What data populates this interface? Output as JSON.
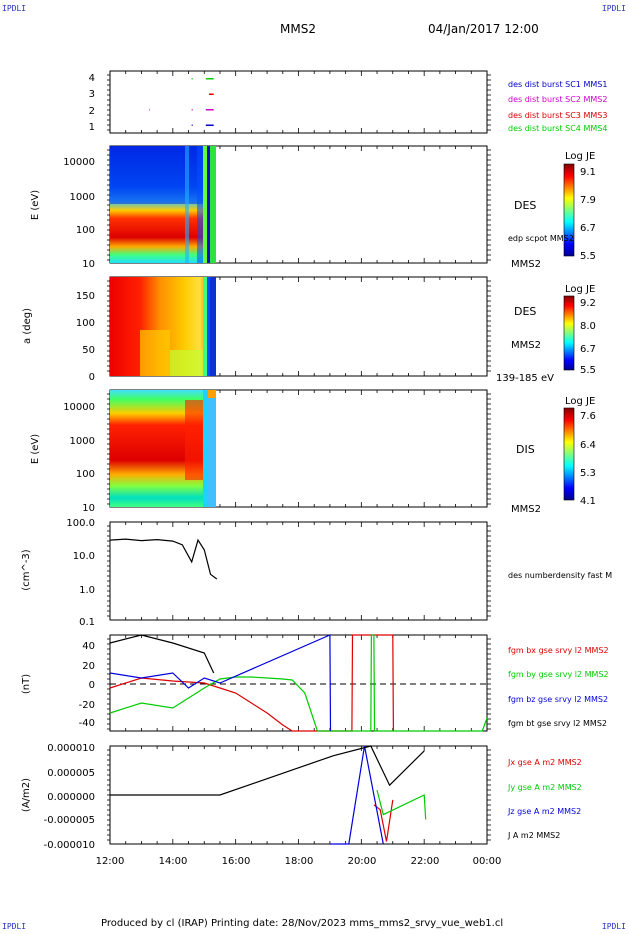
{
  "corner_tags": {
    "tl": "IPDLI",
    "tr": "IPDLI",
    "bl": "IPDLI",
    "br": "IPDLI"
  },
  "header": {
    "title": "MMS2",
    "datetime": "04/Jan/2017 12:00"
  },
  "footer": {
    "text": "Produced by cl (IRAP)   Printing date: 28/Nov/2023   mms_mms2_srvy_vue_web1.cl"
  },
  "colors": {
    "mms1": "#0000cc",
    "mms2": "#cc00cc",
    "mms3": "#dd0000",
    "mms4": "#00cc00",
    "bx": "#dd0000",
    "by": "#00cc00",
    "bz": "#0000dd",
    "bt": "#000000"
  },
  "chart_data": [
    {
      "type": "scatter",
      "id": "burst",
      "ylim": [
        0.5,
        4.5
      ],
      "yticks": [
        "1",
        "2",
        "3",
        "4"
      ],
      "legend_placement": "right",
      "legend": [
        "des dist burst SC1 MMS1",
        "des dist burst SC2 MMS2",
        "des dist burst SC3 MMS3",
        "des dist burst SC4 MMS4"
      ],
      "series": [
        {
          "name": "des dist burst SC1 MMS1",
          "y": 1,
          "segments": [
            [
              14.6,
              14.63
            ],
            [
              15.05,
              15.3
            ]
          ]
        },
        {
          "name": "des dist burst SC2 MMS2",
          "y": 2,
          "segments": [
            [
              13.25,
              13.27
            ],
            [
              14.6,
              14.63
            ],
            [
              15.05,
              15.3
            ]
          ]
        },
        {
          "name": "des dist burst SC3 MMS3",
          "y": 3,
          "segments": [
            [
              15.15,
              15.3
            ]
          ]
        },
        {
          "name": "des dist burst SC4 MMS4",
          "y": 4,
          "segments": [
            [
              14.6,
              14.63
            ],
            [
              15.05,
              15.3
            ]
          ]
        }
      ]
    },
    {
      "type": "heatmap",
      "id": "des_energy",
      "ylabel": "E (eV)",
      "yscale": "log",
      "ylim": [
        10,
        30000
      ],
      "yticks": [
        "10",
        "100",
        "1000",
        "10000"
      ],
      "right_labels": [
        "DES",
        "edp scpot MMS2",
        "MMS2"
      ],
      "colorbar": {
        "title": "Log JE",
        "ticks": [
          "9.1",
          "7.9",
          "6.7",
          "5.5"
        ]
      }
    },
    {
      "type": "heatmap",
      "id": "des_pitch",
      "ylabel": "a (deg)",
      "ylim": [
        0,
        180
      ],
      "yticks": [
        "0",
        "50",
        "100",
        "150"
      ],
      "right_labels": [
        "DES",
        "MMS2",
        "139-185 eV"
      ],
      "colorbar": {
        "title": "Log JE",
        "ticks": [
          "9.2",
          "8.0",
          "6.7",
          "5.5"
        ]
      }
    },
    {
      "type": "heatmap",
      "id": "dis_energy",
      "ylabel": "E (eV)",
      "yscale": "log",
      "ylim": [
        10,
        30000
      ],
      "yticks": [
        "10",
        "100",
        "1000",
        "10000"
      ],
      "right_labels": [
        "DIS",
        "MMS2"
      ],
      "colorbar": {
        "title": "Log JE",
        "ticks": [
          "7.6",
          "6.4",
          "5.3",
          "4.1"
        ]
      }
    },
    {
      "type": "line",
      "id": "density",
      "ylabel": "(cm^-3)",
      "yscale": "log",
      "ylim": [
        0.1,
        100
      ],
      "yticks": [
        "0.1",
        "1.0",
        "10.0",
        "100.0"
      ],
      "legend": [
        "des numberdensity fast M"
      ],
      "x": [
        12.0,
        12.5,
        13.0,
        13.5,
        14.0,
        14.3,
        14.6,
        14.8,
        15.0,
        15.2,
        15.4
      ],
      "values": [
        28,
        30,
        27,
        29,
        26,
        20,
        6,
        28,
        14,
        2.5,
        1.8
      ]
    },
    {
      "type": "line",
      "id": "bfield",
      "ylabel": "(nT)",
      "ylim": [
        -48,
        48
      ],
      "yticks": [
        "-40",
        "-20",
        "0",
        "20",
        "40"
      ],
      "legend": [
        "fgm bx gse srvy l2 MMS2",
        "fgm by gse srvy l2 MMS2",
        "fgm bz gse srvy l2 MMS2",
        "fgm bt gse srvy l2 MMS2"
      ],
      "series": [
        {
          "name": "fgm bx gse srvy l2 MMS2",
          "x": [
            12.0,
            13.0,
            14.0,
            15.0,
            15.5,
            16.0,
            16.5,
            17.0,
            17.5,
            17.8,
            19.7,
            19.72,
            21.0,
            21.02
          ],
          "values": [
            -5,
            5,
            2,
            0,
            -5,
            -10,
            -20,
            -30,
            -42,
            -48,
            -48,
            48,
            48,
            -48
          ]
        },
        {
          "name": "fgm by gse srvy l2 MMS2",
          "x": [
            12.0,
            13.0,
            14.0,
            15.0,
            15.5,
            16.0,
            16.5,
            17.0,
            17.5,
            17.8,
            18.2,
            18.6,
            20.3,
            20.32,
            20.4,
            20.42,
            23.85,
            24.0
          ],
          "values": [
            -30,
            -20,
            -25,
            -5,
            4,
            6,
            6,
            5,
            4,
            3,
            -10,
            -48,
            -48,
            48,
            48,
            -48,
            -48,
            -35
          ]
        },
        {
          "name": "fgm bz gse srvy l2 MMS2",
          "x": [
            12.0,
            13.0,
            14.0,
            14.5,
            15.0,
            15.5,
            19.0,
            19.02
          ],
          "values": [
            10,
            5,
            10,
            -5,
            5,
            0,
            48,
            -48
          ]
        },
        {
          "name": "fgm bt gse srvy l2 MMS2",
          "x": [
            12.0,
            13.0,
            14.0,
            15.0,
            15.3
          ],
          "values": [
            40,
            48,
            40,
            30,
            10
          ]
        }
      ]
    },
    {
      "type": "line",
      "id": "current",
      "ylabel": "(A/m2)",
      "ylim": [
        -1e-05,
        1e-05
      ],
      "yticks": [
        "-0.000010",
        "-0.000005",
        "0.000000",
        "0.000005",
        "0.000010"
      ],
      "legend": [
        "Jx gse A m2 MMS2",
        "Jy gse A m2 MMS2",
        "Jz gse A m2 MMS2",
        "J A m2 MMS2"
      ],
      "xticks": [
        "12:00",
        "14:00",
        "16:00",
        "18:00",
        "20:00",
        "22:00",
        "00:00"
      ],
      "xlim": [
        12,
        24
      ],
      "series": [
        {
          "name": "Jx gse A m2 MMS2",
          "x": [
            20.4,
            20.6,
            20.8,
            21.0
          ],
          "values": [
            -2e-06,
            -3e-06,
            -9.5e-06,
            -1e-06
          ]
        },
        {
          "name": "Jy gse A m2 MMS2",
          "x": [
            20.5,
            20.7,
            22.0,
            22.05
          ],
          "values": [
            1e-06,
            -4e-06,
            0.0,
            -5e-06
          ]
        },
        {
          "name": "Jz gse A m2 MMS2",
          "x": [
            19.0,
            19.6,
            20.1,
            20.7
          ],
          "values": [
            -1e-05,
            -1e-05,
            1e-05,
            -1e-05
          ]
        },
        {
          "name": "J A m2 MMS2",
          "x": [
            12.0,
            15.5,
            19.1,
            20.3,
            20.9,
            22.0
          ],
          "values": [
            0.0,
            0.0,
            8e-06,
            1e-05,
            2e-06,
            9e-06
          ]
        }
      ]
    }
  ]
}
